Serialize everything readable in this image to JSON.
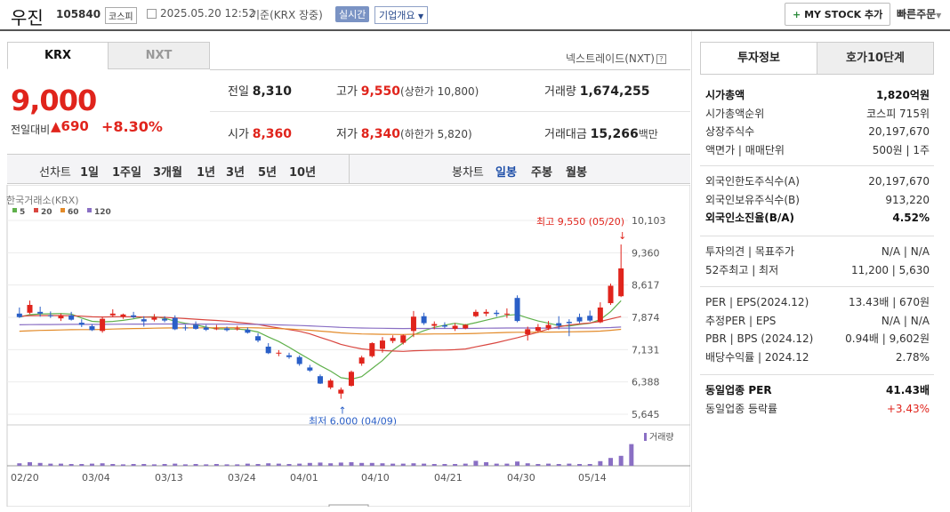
{
  "header": {
    "name": "우진",
    "code": "105840",
    "market": "코스피",
    "datetime": "2025.05.20 12:52",
    "basis": "기준(KRX 장중)",
    "realtime": "실시간",
    "company": "기업개요",
    "mystock": "MY STOCK 추가",
    "quick": "빠른주문"
  },
  "tabs": {
    "krx": "KRX",
    "nxt": "NXT",
    "nextrade": "넥스트레이드(NXT)"
  },
  "price": {
    "current": "9,000",
    "compare_label": "전일대비",
    "change": "690",
    "rate": "+8.30%"
  },
  "summary": {
    "prev": {
      "label": "전일",
      "value": "8,310"
    },
    "high": {
      "label": "고가",
      "value": "9,550",
      "extra": "(상한가 10,800)"
    },
    "volume": {
      "label": "거래량",
      "value": "1,674,255"
    },
    "open": {
      "label": "시가",
      "value": "8,360"
    },
    "low": {
      "label": "저가",
      "value": "8,340",
      "extra": "(하한가 5,820)"
    },
    "amount": {
      "label": "거래대금",
      "value": "15,266",
      "unit": "백만"
    }
  },
  "controls": {
    "line_chart": "선차트",
    "periods": [
      "1일",
      "1주일",
      "3개월",
      "1년",
      "3년",
      "5년",
      "10년"
    ],
    "candle_chart": "봉차트",
    "candles": [
      "일봉",
      "주봉",
      "월봉"
    ]
  },
  "chart_data": {
    "type": "candlestick",
    "source": "한국거래소(KRX)",
    "legend": [
      {
        "name": "5",
        "color": "#5fb04b"
      },
      {
        "name": "20",
        "color": "#d9463f"
      },
      {
        "name": "60",
        "color": "#e38b2a"
      },
      {
        "name": "120",
        "color": "#8a6fc4"
      }
    ],
    "y_ticks": [
      "10,103",
      "9,360",
      "8,617",
      "7,874",
      "7,131",
      "6,388",
      "5,645"
    ],
    "x_ticks": [
      "02/20",
      "03/04",
      "03/13",
      "03/24",
      "04/01",
      "04/10",
      "04/21",
      "04/30",
      "05/14"
    ],
    "ylim": [
      5645,
      10103
    ],
    "high_annotation": "최고 9,550 (05/20)",
    "low_annotation": "최저 6,000 (04/09)",
    "volume_label": "거래량",
    "candles": [
      {
        "o": 7960,
        "h": 8100,
        "l": 7860,
        "c": 7880
      },
      {
        "o": 7980,
        "h": 8260,
        "l": 7950,
        "c": 8160
      },
      {
        "o": 8000,
        "h": 8120,
        "l": 7890,
        "c": 7960
      },
      {
        "o": 7920,
        "h": 8010,
        "l": 7860,
        "c": 7900
      },
      {
        "o": 7850,
        "h": 7960,
        "l": 7790,
        "c": 7910
      },
      {
        "o": 7920,
        "h": 8000,
        "l": 7800,
        "c": 7820
      },
      {
        "o": 7750,
        "h": 7830,
        "l": 7650,
        "c": 7700
      },
      {
        "o": 7670,
        "h": 7720,
        "l": 7560,
        "c": 7580
      },
      {
        "o": 7560,
        "h": 7890,
        "l": 7520,
        "c": 7840
      },
      {
        "o": 7920,
        "h": 8060,
        "l": 7880,
        "c": 7960
      },
      {
        "o": 7890,
        "h": 7960,
        "l": 7840,
        "c": 7940
      },
      {
        "o": 7920,
        "h": 8000,
        "l": 7850,
        "c": 7880
      },
      {
        "o": 7830,
        "h": 7900,
        "l": 7660,
        "c": 7780
      },
      {
        "o": 7820,
        "h": 7950,
        "l": 7780,
        "c": 7870
      },
      {
        "o": 7840,
        "h": 7900,
        "l": 7760,
        "c": 7800
      },
      {
        "o": 7860,
        "h": 7920,
        "l": 7580,
        "c": 7600
      },
      {
        "o": 7640,
        "h": 7700,
        "l": 7570,
        "c": 7630
      },
      {
        "o": 7700,
        "h": 7780,
        "l": 7590,
        "c": 7610
      },
      {
        "o": 7640,
        "h": 7700,
        "l": 7560,
        "c": 7590
      },
      {
        "o": 7610,
        "h": 7700,
        "l": 7580,
        "c": 7620
      },
      {
        "o": 7620,
        "h": 7660,
        "l": 7550,
        "c": 7580
      },
      {
        "o": 7600,
        "h": 7680,
        "l": 7570,
        "c": 7620
      },
      {
        "o": 7590,
        "h": 7640,
        "l": 7500,
        "c": 7520
      },
      {
        "o": 7440,
        "h": 7510,
        "l": 7300,
        "c": 7340
      },
      {
        "o": 7200,
        "h": 7280,
        "l": 7030,
        "c": 7050
      },
      {
        "o": 7050,
        "h": 7120,
        "l": 6980,
        "c": 7060
      },
      {
        "o": 7000,
        "h": 7060,
        "l": 6920,
        "c": 6960
      },
      {
        "o": 6960,
        "h": 7000,
        "l": 6760,
        "c": 6800
      },
      {
        "o": 6720,
        "h": 6780,
        "l": 6620,
        "c": 6650
      },
      {
        "o": 6520,
        "h": 6560,
        "l": 6340,
        "c": 6350
      },
      {
        "o": 6260,
        "h": 6460,
        "l": 6220,
        "c": 6420
      },
      {
        "o": 6120,
        "h": 6260,
        "l": 6000,
        "c": 6210
      },
      {
        "o": 6300,
        "h": 6650,
        "l": 6280,
        "c": 6620
      },
      {
        "o": 6810,
        "h": 6990,
        "l": 6760,
        "c": 6950
      },
      {
        "o": 6980,
        "h": 7300,
        "l": 6950,
        "c": 7280
      },
      {
        "o": 7150,
        "h": 7420,
        "l": 7060,
        "c": 7340
      },
      {
        "o": 7330,
        "h": 7460,
        "l": 7280,
        "c": 7400
      },
      {
        "o": 7290,
        "h": 7480,
        "l": 7250,
        "c": 7460
      },
      {
        "o": 7560,
        "h": 8020,
        "l": 7420,
        "c": 7890
      },
      {
        "o": 7900,
        "h": 7980,
        "l": 7700,
        "c": 7740
      },
      {
        "o": 7680,
        "h": 7780,
        "l": 7600,
        "c": 7720
      },
      {
        "o": 7690,
        "h": 7760,
        "l": 7620,
        "c": 7660
      },
      {
        "o": 7610,
        "h": 7740,
        "l": 7560,
        "c": 7680
      },
      {
        "o": 7620,
        "h": 7720,
        "l": 7600,
        "c": 7700
      },
      {
        "o": 7900,
        "h": 8050,
        "l": 7880,
        "c": 8000
      },
      {
        "o": 7960,
        "h": 8060,
        "l": 7900,
        "c": 8000
      },
      {
        "o": 7980,
        "h": 8040,
        "l": 7890,
        "c": 7950
      },
      {
        "o": 7940,
        "h": 8080,
        "l": 7860,
        "c": 7960
      },
      {
        "o": 8320,
        "h": 8380,
        "l": 7760,
        "c": 7790
      },
      {
        "o": 7480,
        "h": 7660,
        "l": 7340,
        "c": 7600
      },
      {
        "o": 7560,
        "h": 7720,
        "l": 7520,
        "c": 7650
      },
      {
        "o": 7620,
        "h": 7790,
        "l": 7580,
        "c": 7700
      },
      {
        "o": 7740,
        "h": 7900,
        "l": 7600,
        "c": 7680
      },
      {
        "o": 7770,
        "h": 7830,
        "l": 7440,
        "c": 7740
      },
      {
        "o": 7880,
        "h": 7960,
        "l": 7740,
        "c": 7780
      },
      {
        "o": 7910,
        "h": 8030,
        "l": 7770,
        "c": 7800
      },
      {
        "o": 7760,
        "h": 8220,
        "l": 7740,
        "c": 8100
      },
      {
        "o": 8200,
        "h": 8650,
        "l": 8160,
        "c": 8600
      },
      {
        "o": 8360,
        "h": 9550,
        "l": 8340,
        "c": 9000
      }
    ],
    "volumes": [
      0.07,
      0.1,
      0.08,
      0.06,
      0.06,
      0.05,
      0.05,
      0.06,
      0.07,
      0.05,
      0.04,
      0.05,
      0.05,
      0.04,
      0.05,
      0.06,
      0.04,
      0.05,
      0.04,
      0.05,
      0.04,
      0.04,
      0.06,
      0.05,
      0.07,
      0.06,
      0.05,
      0.06,
      0.08,
      0.09,
      0.07,
      0.09,
      0.1,
      0.08,
      0.08,
      0.07,
      0.06,
      0.06,
      0.07,
      0.06,
      0.05,
      0.05,
      0.05,
      0.06,
      0.14,
      0.1,
      0.06,
      0.06,
      0.12,
      0.07,
      0.05,
      0.06,
      0.05,
      0.06,
      0.05,
      0.05,
      0.13,
      0.22,
      0.28,
      0.61
    ]
  },
  "right_tabs": {
    "invest": "투자정보",
    "quote": "호가10단계"
  },
  "info": {
    "g1": [
      {
        "k": "시가총액",
        "v": "1,820억원",
        "bold": true
      },
      {
        "k": "시가총액순위",
        "v": "코스피 715위"
      },
      {
        "k": "상장주식수",
        "v": "20,197,670"
      },
      {
        "k": "액면가 | 매매단위",
        "v": "500원 | 1주"
      }
    ],
    "g2": [
      {
        "k": "외국인한도주식수(A)",
        "v": "20,197,670"
      },
      {
        "k": "외국인보유주식수(B)",
        "v": "913,220"
      },
      {
        "k": "외국인소진율(B/A)",
        "v": "4.52%",
        "bold": true
      }
    ],
    "g3": [
      {
        "k": "투자의견 | 목표주가",
        "v": "N/A | N/A"
      },
      {
        "k": "52주최고 | 최저",
        "v": "11,200 | 5,630"
      }
    ],
    "g4": [
      {
        "k": "PER | EPS(2024.12)",
        "v": "13.43배 | 670원"
      },
      {
        "k": "추정PER | EPS",
        "v": "N/A | N/A"
      },
      {
        "k": "PBR | BPS (2024.12)",
        "v": "0.94배 | 9,602원"
      },
      {
        "k": "배당수익률 | 2024.12",
        "v": "2.78%"
      }
    ],
    "g5": [
      {
        "k": "동일업종 PER",
        "v": "41.43배",
        "bold": true
      },
      {
        "k": "동일업종 등락률",
        "v": "+3.43%",
        "up": true
      }
    ]
  }
}
